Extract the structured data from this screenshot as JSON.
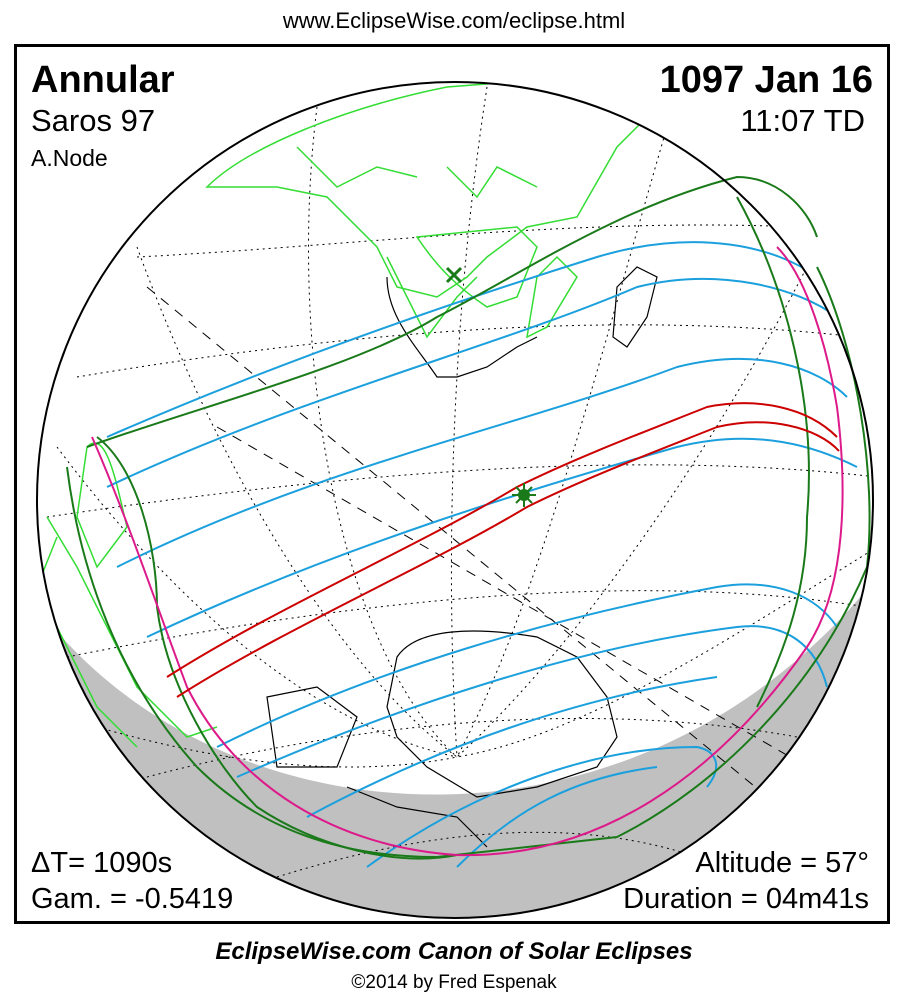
{
  "header": {
    "url": "www.EclipseWise.com/eclipse.html"
  },
  "eclipse": {
    "type": "Annular",
    "saros": "Saros  97",
    "node": "A.Node",
    "date": "1097 Jan 16",
    "time": "11:07 TD",
    "delta_t": "ΔT=   1090s",
    "gamma": "Gam. = -0.5419",
    "altitude": "Altitude = 57°",
    "duration": "Duration = 04m41s"
  },
  "footer": {
    "canon": "EclipseWise.com Canon of Solar Eclipses",
    "copyright": "©2014 by Fred Espenak"
  },
  "colors": {
    "central_path": "#cc0000",
    "penumbral_limits": "#1a7a1a",
    "magnitude_curves": "#1ba0dd",
    "rise_set_curve": "#dd1a8a",
    "land": "#33dd33",
    "night_shade": "#c0c0c0"
  },
  "icons": {
    "greatest_eclipse": "star-marker",
    "sub_solar_point": "x-marker"
  }
}
